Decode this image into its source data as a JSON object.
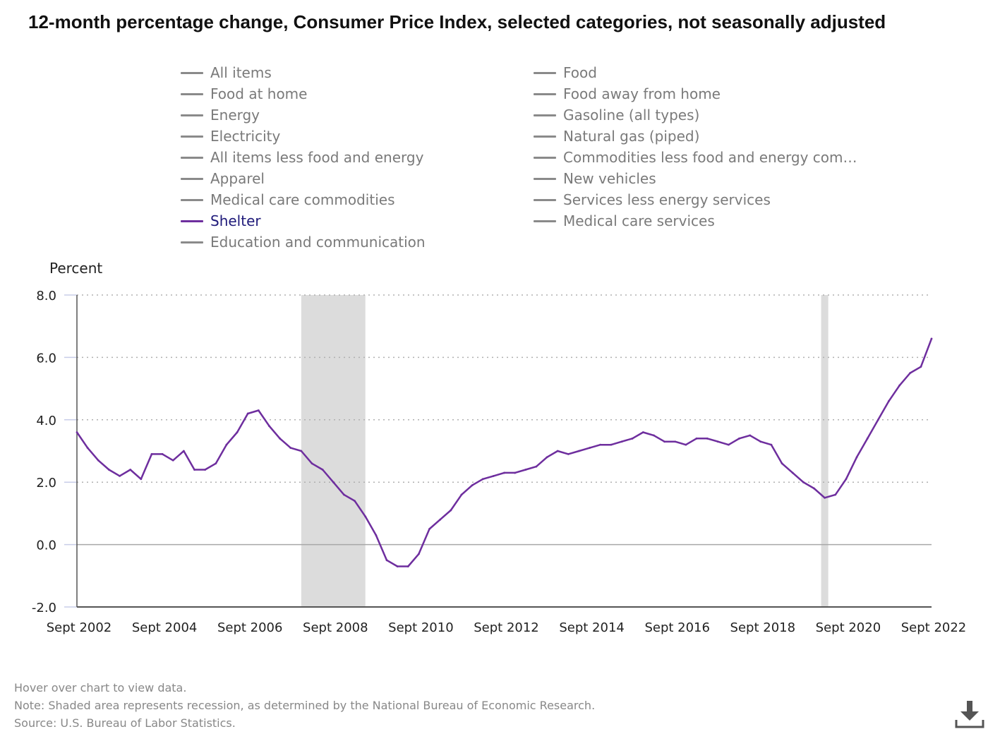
{
  "title": "12-month percentage change, Consumer Price Index, selected categories, not seasonally adjusted",
  "legend": {
    "items": [
      {
        "label": "All items",
        "active": false
      },
      {
        "label": "Food",
        "active": false
      },
      {
        "label": "Food at home",
        "active": false
      },
      {
        "label": "Food away from home",
        "active": false
      },
      {
        "label": "Energy",
        "active": false
      },
      {
        "label": "Gasoline (all types)",
        "active": false
      },
      {
        "label": "Electricity",
        "active": false
      },
      {
        "label": "Natural gas (piped)",
        "active": false
      },
      {
        "label": "All items less food and energy",
        "active": false
      },
      {
        "label": "Commodities less food and energy com…",
        "active": false
      },
      {
        "label": "Apparel",
        "active": false
      },
      {
        "label": "New vehicles",
        "active": false
      },
      {
        "label": "Medical care commodities",
        "active": false
      },
      {
        "label": "Services less energy services",
        "active": false
      },
      {
        "label": "Shelter",
        "active": true
      },
      {
        "label": "Medical care services",
        "active": false
      },
      {
        "label": "Education and communication",
        "active": false
      }
    ]
  },
  "notes": {
    "hover": "Hover over chart to view data.",
    "note": "Note: Shaded area represents recession, as determined by the National Bureau of Economic Research.",
    "source": "Source: U.S. Bureau of Labor Statistics."
  },
  "colors": {
    "active_series": "#6e2e9e",
    "inactive_series": "#8a8a8a",
    "recession": "#dcdcdc",
    "grid": "#b0b0b0"
  },
  "icons": {
    "download": "download-icon"
  },
  "chart_data": {
    "type": "line",
    "title": "12-month percentage change, Consumer Price Index, selected categories, not seasonally adjusted",
    "ylabel": "Percent",
    "xlabel": "",
    "ylim": [
      -2.0,
      8.0
    ],
    "yticks": [
      "-2.0",
      "0.0",
      "2.0",
      "4.0",
      "6.0",
      "8.0"
    ],
    "xticks": [
      "Sept 2002",
      "Sept 2004",
      "Sept 2006",
      "Sept 2008",
      "Sept 2010",
      "Sept 2012",
      "Sept 2014",
      "Sept 2016",
      "Sept 2018",
      "Sept 2020",
      "Sept 2022"
    ],
    "xrange": [
      "2002-09",
      "2022-09"
    ],
    "grid": true,
    "legend_position": "top",
    "recessions": [
      {
        "start": "2007-12",
        "end": "2009-06"
      },
      {
        "start": "2020-02",
        "end": "2020-04"
      }
    ],
    "series": [
      {
        "name": "Shelter",
        "x": [
          "2002-09",
          "2002-12",
          "2003-03",
          "2003-06",
          "2003-09",
          "2003-12",
          "2004-03",
          "2004-06",
          "2004-09",
          "2004-12",
          "2005-03",
          "2005-06",
          "2005-09",
          "2005-12",
          "2006-03",
          "2006-06",
          "2006-09",
          "2006-12",
          "2007-03",
          "2007-06",
          "2007-09",
          "2007-12",
          "2008-03",
          "2008-06",
          "2008-09",
          "2008-12",
          "2009-03",
          "2009-06",
          "2009-09",
          "2009-12",
          "2010-03",
          "2010-06",
          "2010-09",
          "2010-12",
          "2011-03",
          "2011-06",
          "2011-09",
          "2011-12",
          "2012-03",
          "2012-06",
          "2012-09",
          "2012-12",
          "2013-03",
          "2013-06",
          "2013-09",
          "2013-12",
          "2014-03",
          "2014-06",
          "2014-09",
          "2014-12",
          "2015-03",
          "2015-06",
          "2015-09",
          "2015-12",
          "2016-03",
          "2016-06",
          "2016-09",
          "2016-12",
          "2017-03",
          "2017-06",
          "2017-09",
          "2017-12",
          "2018-03",
          "2018-06",
          "2018-09",
          "2018-12",
          "2019-03",
          "2019-06",
          "2019-09",
          "2019-12",
          "2020-03",
          "2020-06",
          "2020-09",
          "2020-12",
          "2021-03",
          "2021-06",
          "2021-09",
          "2021-12",
          "2022-03",
          "2022-06",
          "2022-09"
        ],
        "values": [
          3.6,
          3.1,
          2.7,
          2.4,
          2.2,
          2.4,
          2.1,
          2.9,
          2.9,
          2.7,
          3.0,
          2.4,
          2.4,
          2.6,
          3.2,
          3.6,
          4.2,
          4.3,
          3.8,
          3.4,
          3.1,
          3.0,
          2.6,
          2.4,
          2.0,
          1.6,
          1.4,
          0.9,
          0.3,
          -0.5,
          -0.7,
          -0.7,
          -0.3,
          0.5,
          0.8,
          1.1,
          1.6,
          1.9,
          2.1,
          2.2,
          2.3,
          2.3,
          2.4,
          2.5,
          2.8,
          3.0,
          2.9,
          3.0,
          3.1,
          3.2,
          3.2,
          3.3,
          3.4,
          3.6,
          3.5,
          3.3,
          3.3,
          3.2,
          3.4,
          3.4,
          3.3,
          3.2,
          3.4,
          3.5,
          3.3,
          3.2,
          2.6,
          2.3,
          2.0,
          1.8,
          1.5,
          1.6,
          2.1,
          2.8,
          3.4,
          4.0,
          4.6,
          5.1,
          5.5,
          5.7,
          6.6
        ]
      }
    ]
  }
}
